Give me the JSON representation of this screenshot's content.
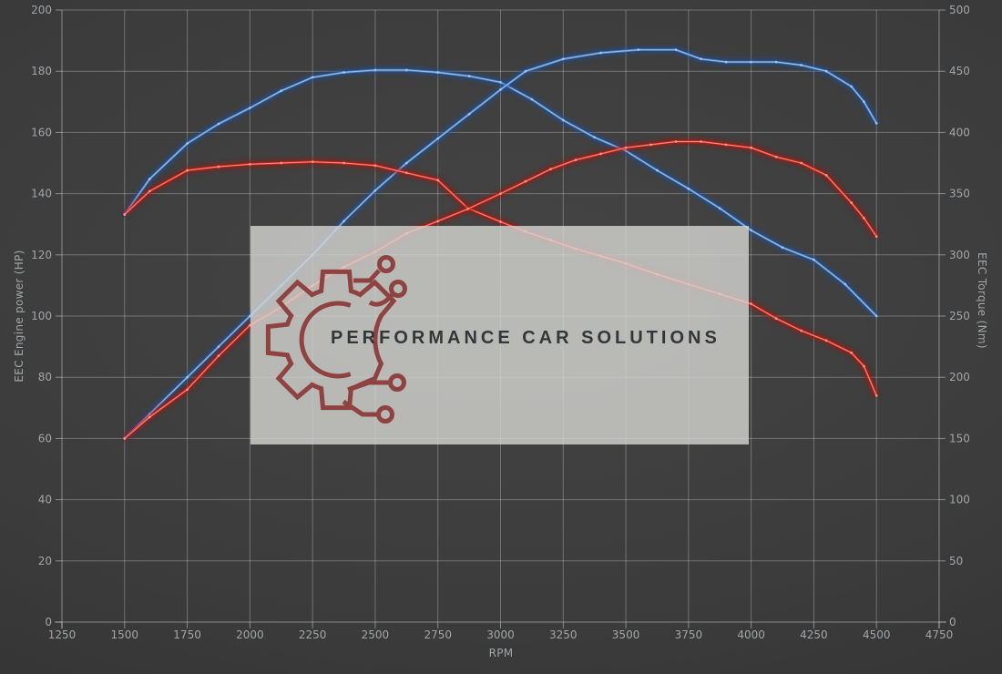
{
  "colors": {
    "background_center": "#454545",
    "background_mid": "#3b3b3b",
    "background_edge": "#2e2e2e",
    "grid": "rgba(225,225,225,0.33)",
    "axis": "rgba(235,235,235,0.45)",
    "tick_label": "#a2a5a7",
    "blue_glow": "#1f4f9e",
    "blue_line": "#4e87c7",
    "blue_core": "#a5c9ee",
    "red_glow": "#9e120d",
    "red_line": "#e02b1f",
    "red_core": "#ff9b8d",
    "watermark_bg": "rgba(211,211,207,0.82)",
    "logo_color": "#8f4340",
    "brand_text_color": "#33373a"
  },
  "watermark": {
    "text": "PERFORMANCE CAR SOLUTIONS",
    "logo_icon": "gear-circuit-icon"
  },
  "chart_data": {
    "type": "line",
    "title": "",
    "xlabel": "RPM",
    "ylabel_left": "EEC Engine power (HP)",
    "ylabel_right": "EEC Torque (Nm)",
    "xlim": [
      1250,
      4750
    ],
    "ylim_left": [
      0,
      200
    ],
    "ylim_right": [
      0,
      500
    ],
    "x_ticks": [
      1250,
      1500,
      1750,
      2000,
      2250,
      2500,
      2750,
      3000,
      3250,
      3500,
      3750,
      4000,
      4250,
      4500,
      4750
    ],
    "y_left_ticks": [
      0,
      20,
      40,
      60,
      80,
      100,
      120,
      140,
      160,
      180,
      200
    ],
    "y_right_ticks": [
      0,
      50,
      100,
      150,
      200,
      250,
      300,
      350,
      400,
      450,
      500
    ],
    "grid": true,
    "legend": "none",
    "series": [
      {
        "name": "blue-torque-curve",
        "color_key": "blue",
        "axis": "right",
        "unit": "Nm",
        "peak": {
          "rpm": 2550,
          "value": 451
        },
        "points": [
          [
            1500,
            333
          ],
          [
            1600,
            362
          ],
          [
            1750,
            391
          ],
          [
            1875,
            407
          ],
          [
            2000,
            420
          ],
          [
            2125,
            434
          ],
          [
            2250,
            445
          ],
          [
            2375,
            449
          ],
          [
            2500,
            451
          ],
          [
            2625,
            451
          ],
          [
            2750,
            449
          ],
          [
            2875,
            446
          ],
          [
            3000,
            441
          ],
          [
            3125,
            427
          ],
          [
            3250,
            410
          ],
          [
            3375,
            396
          ],
          [
            3500,
            385
          ],
          [
            3625,
            369
          ],
          [
            3750,
            354
          ],
          [
            3875,
            338
          ],
          [
            4000,
            320
          ],
          [
            4125,
            306
          ],
          [
            4250,
            296
          ],
          [
            4375,
            276
          ],
          [
            4500,
            250
          ]
        ]
      },
      {
        "name": "blue-power-curve",
        "color_key": "blue",
        "axis": "left",
        "unit": "HP",
        "peak": {
          "rpm": 3650,
          "value": 187
        },
        "points": [
          [
            1500,
            60
          ],
          [
            1600,
            68
          ],
          [
            1750,
            80
          ],
          [
            1875,
            90
          ],
          [
            2000,
            100
          ],
          [
            2125,
            110
          ],
          [
            2250,
            120
          ],
          [
            2375,
            131
          ],
          [
            2500,
            141
          ],
          [
            2625,
            150
          ],
          [
            2750,
            158
          ],
          [
            2875,
            166
          ],
          [
            3000,
            174
          ],
          [
            3100,
            180
          ],
          [
            3250,
            184
          ],
          [
            3400,
            186
          ],
          [
            3550,
            187
          ],
          [
            3700,
            187
          ],
          [
            3800,
            184
          ],
          [
            3900,
            183
          ],
          [
            4000,
            183
          ],
          [
            4100,
            183
          ],
          [
            4200,
            182
          ],
          [
            4300,
            180
          ],
          [
            4400,
            175
          ],
          [
            4450,
            170
          ],
          [
            4500,
            163
          ]
        ]
      },
      {
        "name": "red-torque-curve",
        "color_key": "red",
        "axis": "right",
        "unit": "Nm",
        "peak": {
          "rpm": 2250,
          "value": 376
        },
        "points": [
          [
            1500,
            333
          ],
          [
            1600,
            352
          ],
          [
            1750,
            369
          ],
          [
            1875,
            372
          ],
          [
            2000,
            374
          ],
          [
            2125,
            375
          ],
          [
            2250,
            376
          ],
          [
            2375,
            375
          ],
          [
            2500,
            373
          ],
          [
            2625,
            367
          ],
          [
            2750,
            361
          ],
          [
            2870,
            338
          ],
          [
            3000,
            327
          ],
          [
            3100,
            319
          ],
          [
            3200,
            312
          ],
          [
            3300,
            305
          ],
          [
            3400,
            299
          ],
          [
            3500,
            293
          ],
          [
            3625,
            284
          ],
          [
            3750,
            276
          ],
          [
            3875,
            268
          ],
          [
            4000,
            260
          ],
          [
            4100,
            248
          ],
          [
            4200,
            238
          ],
          [
            4300,
            230
          ],
          [
            4400,
            220
          ],
          [
            4450,
            209
          ],
          [
            4500,
            185
          ]
        ]
      },
      {
        "name": "red-power-curve",
        "color_key": "red",
        "axis": "left",
        "unit": "HP",
        "peak": {
          "rpm": 3750,
          "value": 157
        },
        "points": [
          [
            1500,
            60
          ],
          [
            1600,
            67
          ],
          [
            1750,
            76
          ],
          [
            1875,
            87
          ],
          [
            2000,
            97
          ],
          [
            2125,
            103
          ],
          [
            2250,
            110
          ],
          [
            2375,
            116
          ],
          [
            2500,
            121
          ],
          [
            2625,
            127
          ],
          [
            2750,
            131
          ],
          [
            2870,
            135
          ],
          [
            3000,
            140
          ],
          [
            3100,
            144
          ],
          [
            3200,
            148
          ],
          [
            3300,
            151
          ],
          [
            3400,
            153
          ],
          [
            3500,
            155
          ],
          [
            3600,
            156
          ],
          [
            3700,
            157
          ],
          [
            3800,
            157
          ],
          [
            3900,
            156
          ],
          [
            4000,
            155
          ],
          [
            4100,
            152
          ],
          [
            4200,
            150
          ],
          [
            4300,
            146
          ],
          [
            4400,
            137
          ],
          [
            4450,
            132
          ],
          [
            4500,
            126
          ]
        ]
      }
    ]
  }
}
